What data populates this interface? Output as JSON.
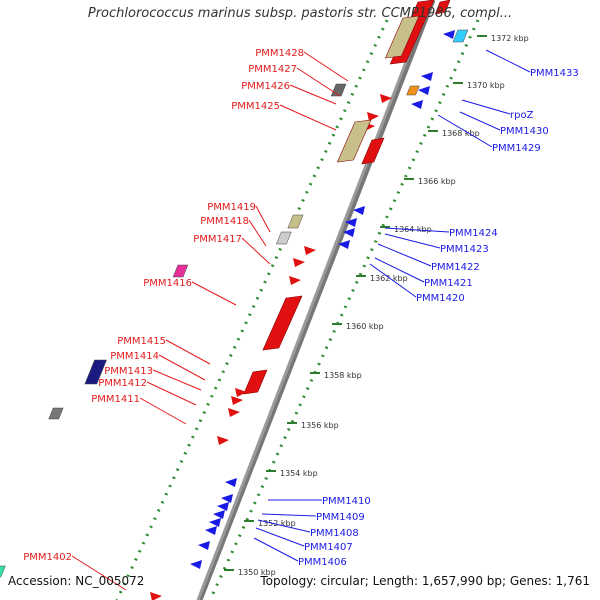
{
  "title": "Prochlorococcus marinus subsp. pastoris str. CCMP1986, compl...",
  "footer": {
    "accession": "Accession: NC_005072",
    "topology": "Topology: circular; Length: 1,657,990 bp; Genes: 1,761"
  },
  "colors": {
    "forward_label": "#e41a1c",
    "reverse_label": "#1a1ae6",
    "backbone": "#9a9a9a",
    "scale_dots": "#2e8b2e",
    "tick_text": "#333333"
  },
  "scale_ticks": [
    "1372 kbp",
    "1370 kbp",
    "1368 kbp",
    "1366 kbp",
    "1364 kbp",
    "1362 kbp",
    "1360 kbp",
    "1358 kbp",
    "1356 kbp",
    "1354 kbp",
    "1352 kbp",
    "1350 kbp"
  ],
  "forward_genes": [
    "PMM1428",
    "PMM1427",
    "PMM1426",
    "PMM1425",
    "PMM1419",
    "PMM1418",
    "PMM1417",
    "PMM1416",
    "PMM1415",
    "PMM1414",
    "PMM1413",
    "PMM1412",
    "PMM1411",
    "PMM1402"
  ],
  "reverse_genes": [
    "PMM1433",
    "rpoZ",
    "PMM1430",
    "PMM1429",
    "PMM1424",
    "PMM1423",
    "PMM1422",
    "PMM1421",
    "PMM1420",
    "PMM1410",
    "PMM1409",
    "PMM1408",
    "PMM1407",
    "PMM1406"
  ]
}
